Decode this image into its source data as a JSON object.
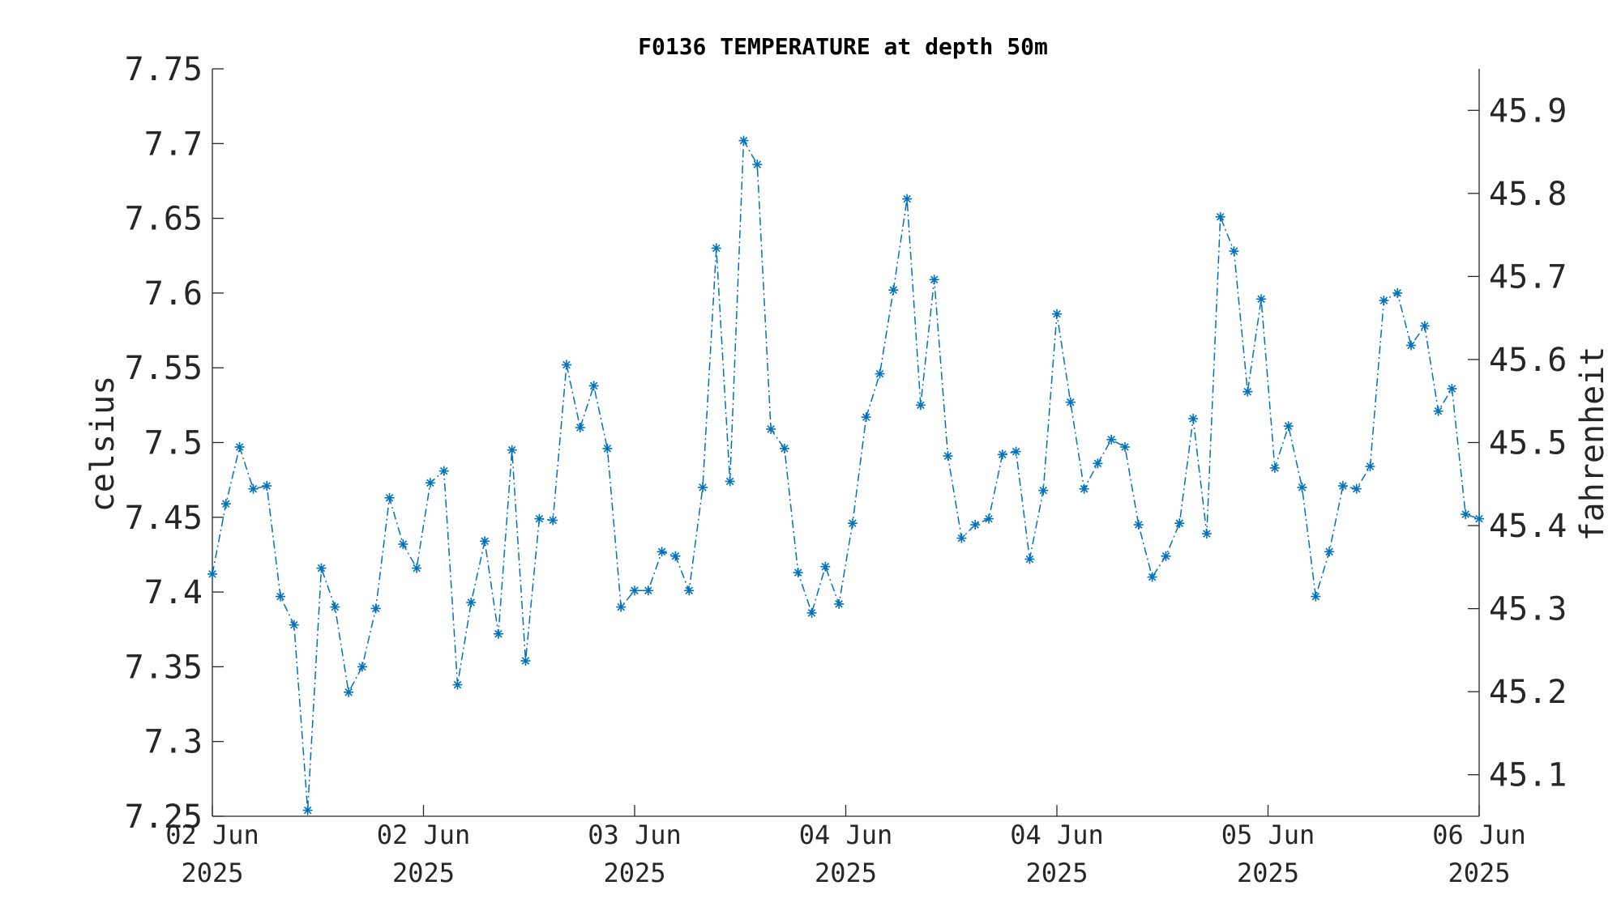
{
  "chart_data": {
    "type": "line",
    "title": "F0136 TEMPERATURE at depth 50m",
    "ylabel": "celsius",
    "ylabel_right": "fahrenheit",
    "ylim": [
      7.25,
      7.75
    ],
    "ylim_right": [
      45.05,
      45.95
    ],
    "yticks": [
      "7.25",
      "7.3",
      "7.35",
      "7.4",
      "7.45",
      "7.5",
      "7.55",
      "7.6",
      "7.65",
      "7.7",
      "7.75"
    ],
    "yticks_right": [
      "45.1",
      "45.2",
      "45.3",
      "45.4",
      "45.5",
      "45.6",
      "45.7",
      "45.8",
      "45.9"
    ],
    "xticks": [
      {
        "line1": "02 Jun",
        "line2": "2025"
      },
      {
        "line1": "02 Jun",
        "line2": "2025"
      },
      {
        "line1": "03 Jun",
        "line2": "2025"
      },
      {
        "line1": "04 Jun",
        "line2": "2025"
      },
      {
        "line1": "04 Jun",
        "line2": "2025"
      },
      {
        "line1": "05 Jun",
        "line2": "2025"
      },
      {
        "line1": "06 Jun",
        "line2": "2025"
      }
    ],
    "grid": false,
    "series": [
      {
        "color": "#0072BD",
        "marker": "asterisk",
        "line_style": "dash-dot",
        "values": [
          7.412,
          7.459,
          7.497,
          7.469,
          7.471,
          7.397,
          7.378,
          7.254,
          7.416,
          7.39,
          7.333,
          7.35,
          7.389,
          7.463,
          7.432,
          7.416,
          7.473,
          7.481,
          7.338,
          7.393,
          7.434,
          7.372,
          7.495,
          7.354,
          7.449,
          7.448,
          7.552,
          7.51,
          7.538,
          7.496,
          7.39,
          7.401,
          7.401,
          7.427,
          7.424,
          7.401,
          7.47,
          7.63,
          7.474,
          7.702,
          7.686,
          7.509,
          7.496,
          7.413,
          7.386,
          7.417,
          7.392,
          7.446,
          7.517,
          7.546,
          7.602,
          7.663,
          7.525,
          7.609,
          7.491,
          7.436,
          7.445,
          7.449,
          7.492,
          7.494,
          7.422,
          7.468,
          7.586,
          7.527,
          7.469,
          7.486,
          7.502,
          7.497,
          7.445,
          7.41,
          7.424,
          7.446,
          7.516,
          7.439,
          7.651,
          7.628,
          7.534,
          7.596,
          7.483,
          7.511,
          7.47,
          7.397,
          7.427,
          7.471,
          7.469,
          7.484,
          7.595,
          7.6,
          7.565,
          7.578,
          7.521,
          7.536,
          7.452,
          7.449
        ]
      }
    ]
  }
}
